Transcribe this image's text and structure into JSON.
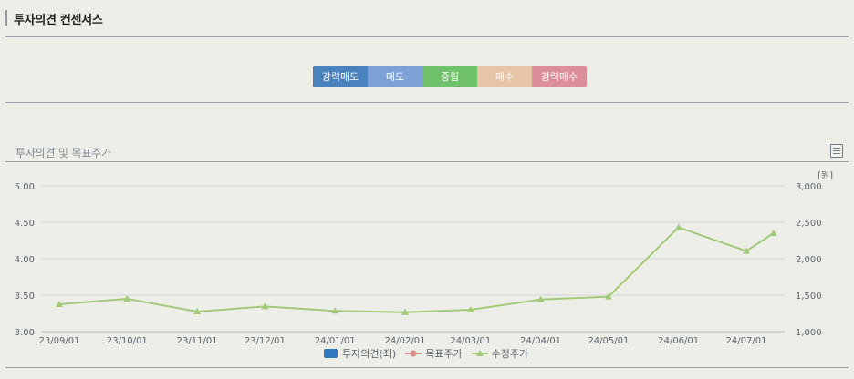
{
  "header": {
    "title": "투자의견 컨센서스"
  },
  "opinion_scale": [
    {
      "label": "강력매도",
      "color": "#4a82bd"
    },
    {
      "label": "매도",
      "color": "#7ea2d8"
    },
    {
      "label": "중립",
      "color": "#6fc16a"
    },
    {
      "label": "매수",
      "color": "#e6c4a6"
    },
    {
      "label": "강력매수",
      "color": "#dc8f98"
    }
  ],
  "chart_section": {
    "title": "투자의견 및 목표주가",
    "menu_icon": "list-icon"
  },
  "chart_data": {
    "type": "line",
    "x": [
      "23/09/01",
      "23/10/01",
      "23/11/01",
      "23/12/01",
      "24/01/01",
      "24/02/01",
      "24/03/01",
      "24/04/01",
      "24/05/01",
      "24/06/01",
      "24/07/01"
    ],
    "y_left": {
      "ticks": [
        "5.00",
        "4.50",
        "4.00",
        "3.50",
        "3.00"
      ],
      "range": [
        3.0,
        5.0
      ]
    },
    "y_right": {
      "ticks": [
        "3,000",
        "2,500",
        "2,000",
        "1,500",
        "1,000"
      ],
      "range": [
        1000,
        3000
      ],
      "unit": "[원]"
    },
    "series": [
      {
        "name": "수정주가",
        "color": "#a3c97a",
        "axis": "right",
        "points": [
          {
            "x": "2023-09-01",
            "y": 1375
          },
          {
            "x": "2023-10-01",
            "y": 1450
          },
          {
            "x": "2023-11-01",
            "y": 1275
          },
          {
            "x": "2023-12-01",
            "y": 1345
          },
          {
            "x": "2024-01-01",
            "y": 1285
          },
          {
            "x": "2024-02-01",
            "y": 1265
          },
          {
            "x": "2024-03-01",
            "y": 1300
          },
          {
            "x": "2024-04-01",
            "y": 1440
          },
          {
            "x": "2024-05-01",
            "y": 1480
          },
          {
            "x": "2024-06-01",
            "y": 2430
          },
          {
            "x": "2024-07-01",
            "y": 2105
          },
          {
            "x": "2024-07-13",
            "y": 2350
          }
        ]
      }
    ],
    "legend": [
      {
        "label": "투자의견(좌)",
        "color": "#2f78bf",
        "marker": "box"
      },
      {
        "label": "목표주가",
        "color": "#d98f8f",
        "marker": "circle"
      },
      {
        "label": "수정주가",
        "color": "#a3c97a",
        "marker": "triangle"
      }
    ],
    "legend_position": "bottom-center"
  }
}
